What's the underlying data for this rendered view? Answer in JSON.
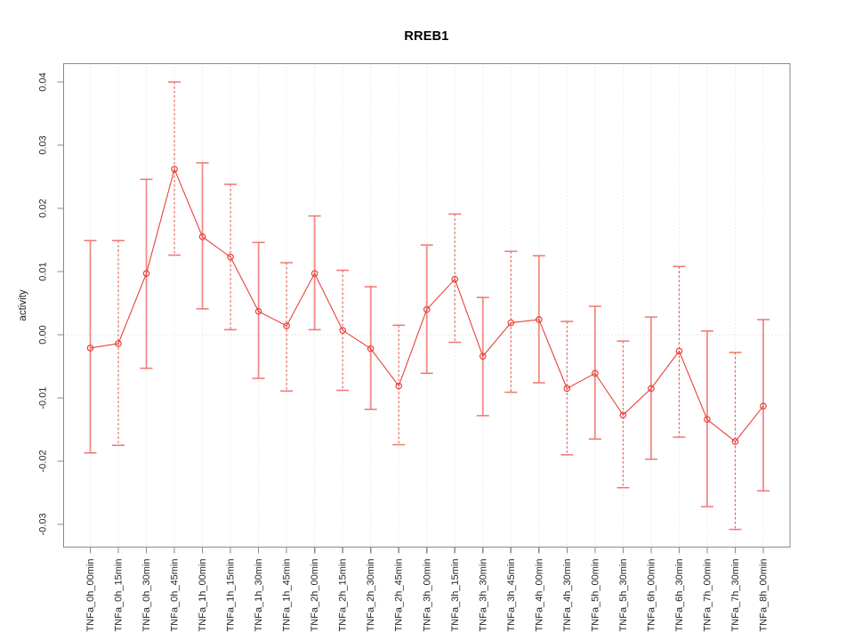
{
  "title": "RREB1",
  "chart_data": {
    "type": "line",
    "title": "RREB1",
    "xlabel": "",
    "ylabel": "activity",
    "legend_position": "none",
    "marker": "open-circle",
    "categories": [
      "TNFa_0h_00min",
      "TNFa_0h_15min",
      "TNFa_0h_30min",
      "TNFa_0h_45min",
      "TNFa_1h_00min",
      "TNFa_1h_15min",
      "TNFa_1h_30min",
      "TNFa_1h_45min",
      "TNFa_2h_00min",
      "TNFa_2h_15min",
      "TNFa_2h_30min",
      "TNFa_2h_45min",
      "TNFa_3h_00min",
      "TNFa_3h_15min",
      "TNFa_3h_30min",
      "TNFa_3h_45min",
      "TNFa_4h_00min",
      "TNFa_4h_30min",
      "TNFa_5h_00min",
      "TNFa_5h_30min",
      "TNFa_6h_00min",
      "TNFa_6h_30min",
      "TNFa_7h_00min",
      "TNFa_7h_30min",
      "TNFa_8h_00min"
    ],
    "series": [
      {
        "name": "activity",
        "values": [
          -0.0021,
          -0.0014,
          0.0097,
          0.0262,
          0.0155,
          0.0123,
          0.0037,
          0.0014,
          0.0097,
          0.0007,
          -0.0022,
          -0.0081,
          0.004,
          0.0088,
          -0.0034,
          0.0019,
          0.0024,
          -0.0085,
          -0.0061,
          -0.0127,
          -0.0085,
          -0.0026,
          -0.0134,
          -0.0169,
          -0.0113
        ],
        "error_high": [
          0.0149,
          0.0149,
          0.0246,
          0.04,
          0.0272,
          0.0238,
          0.0146,
          0.0114,
          0.0188,
          0.0102,
          0.0076,
          0.0015,
          0.0142,
          0.0191,
          0.0059,
          0.0132,
          0.0125,
          0.0021,
          0.0045,
          -0.001,
          0.0028,
          0.0108,
          0.0006,
          -0.0028,
          0.0024
        ],
        "error_low": [
          -0.0187,
          -0.0175,
          -0.0053,
          0.0126,
          0.0041,
          0.0008,
          -0.0069,
          -0.0089,
          0.0008,
          -0.0088,
          -0.0118,
          -0.0174,
          -0.0061,
          -0.0012,
          -0.0128,
          -0.0091,
          -0.0076,
          -0.019,
          -0.0165,
          -0.0242,
          -0.0197,
          -0.0162,
          -0.0272,
          -0.0308,
          -0.0247
        ]
      }
    ],
    "ytick_labels": [
      "0.04",
      "0.03",
      "0.02",
      "0.01",
      "0.00",
      "-0.01",
      "-0.02",
      "-0.03"
    ],
    "ylim": [
      -0.0336,
      0.0429
    ],
    "grid": {
      "vertical_dotted": true,
      "horizontal_zero_line_dotted": true
    },
    "colors": {
      "series": "#e8413a",
      "error_stem_solid": "#f28b84",
      "error_stem_dashed": "#ea564e",
      "error_cap": "#ef766e",
      "grid": "#dbdbdb",
      "zero_line": "#d0d0d0",
      "axis": "#8a8a8a",
      "tick_text": "#262626"
    }
  }
}
